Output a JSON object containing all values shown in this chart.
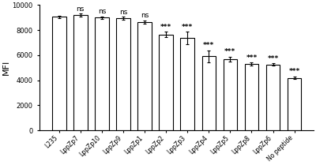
{
  "categories": [
    "L235",
    "LppZp7",
    "LppZp10",
    "LppZp9",
    "LppZp1",
    "LppZp2",
    "LppZp3",
    "LppZp4",
    "LppZp5",
    "LppZp8",
    "LppZp6",
    "No peptide"
  ],
  "values": [
    9050,
    9200,
    9000,
    8950,
    8650,
    7650,
    7350,
    5900,
    5700,
    5300,
    5250,
    4200
  ],
  "errors": [
    100,
    100,
    100,
    100,
    120,
    200,
    500,
    500,
    180,
    100,
    100,
    100
  ],
  "significance": [
    "",
    "ns",
    "ns",
    "ns",
    "ns",
    "***",
    "***",
    "***",
    "***",
    "***",
    "***",
    "***"
  ],
  "ylabel": "MFI",
  "ylim": [
    0,
    10000
  ],
  "yticks": [
    0,
    2000,
    4000,
    6000,
    8000,
    10000
  ],
  "bar_color": "#ffffff",
  "bar_edge_color": "#000000",
  "bar_linewidth": 0.8,
  "error_color": "#000000",
  "sig_fontsize": 6.5,
  "ylabel_fontsize": 8,
  "tick_fontsize": 6,
  "xtick_fontsize": 5.5,
  "background_color": "#ffffff"
}
